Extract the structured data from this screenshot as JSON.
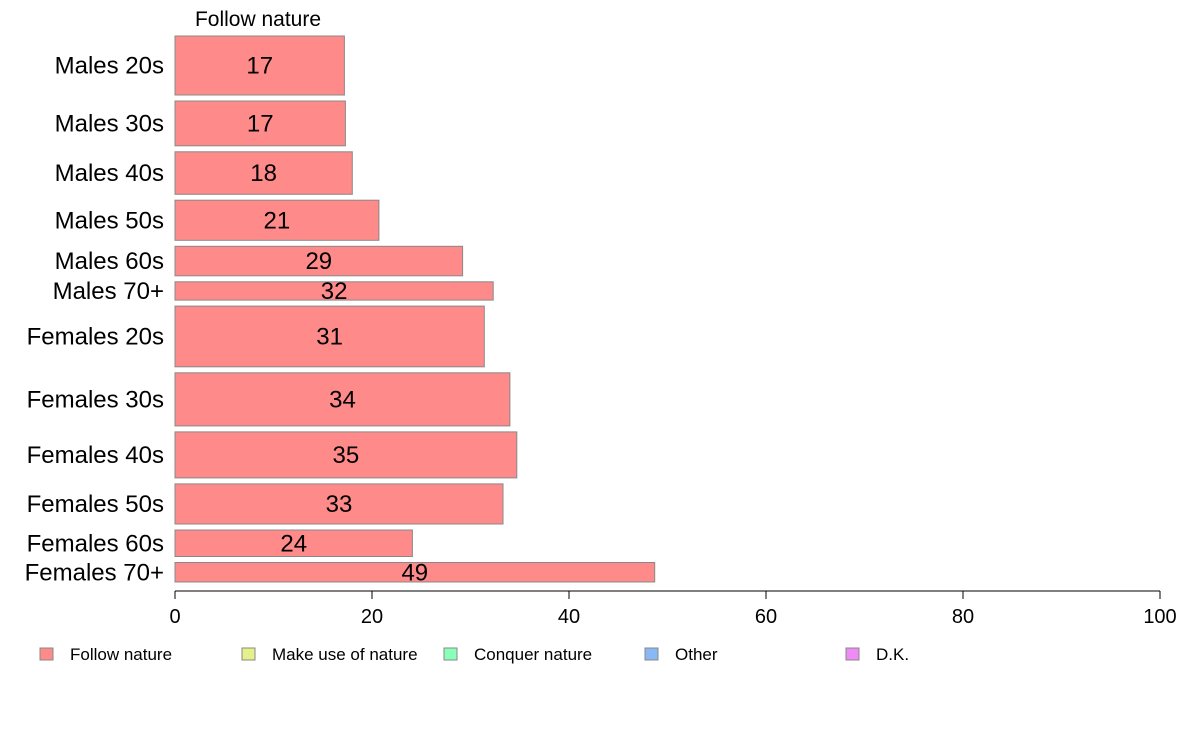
{
  "chart_data": {
    "type": "bar",
    "orientation": "horizontal",
    "title": "Follow nature",
    "categories": [
      "Males 20s",
      "Males 30s",
      "Males 40s",
      "Males 50s",
      "Males 60s",
      "Males 70+",
      "Females 20s",
      "Females 30s",
      "Females 40s",
      "Females 50s",
      "Females 60s",
      "Females 70+"
    ],
    "series": [
      {
        "name": "Follow nature",
        "values": [
          17.2,
          17.3,
          18.0,
          20.7,
          29.2,
          32.3,
          31.4,
          34.0,
          34.7,
          33.3,
          24.1,
          48.7
        ],
        "labels": [
          "17",
          "17",
          "18",
          "21",
          "29",
          "32",
          "31",
          "34",
          "35",
          "33",
          "24",
          "49"
        ]
      }
    ],
    "category_weights": [
      1.0,
      0.76,
      0.72,
      0.68,
      0.5,
      0.31,
      1.03,
      0.9,
      0.78,
      0.68,
      0.45,
      0.33
    ],
    "xlim": [
      0,
      100
    ],
    "xticks": [
      0,
      20,
      40,
      60,
      80,
      100
    ],
    "xlabel": "",
    "ylabel": "",
    "grid": false,
    "bar_color": "#ff8a8a",
    "bar_border": "#888888",
    "legend": {
      "placement": "bottom",
      "items": [
        {
          "label": "Follow nature",
          "color": "#ff8a8a"
        },
        {
          "label": "Make use of nature",
          "color": "#e6f08a"
        },
        {
          "label": "Conquer nature",
          "color": "#8affb8"
        },
        {
          "label": "Other",
          "color": "#8ab8f5"
        },
        {
          "label": "D.K.",
          "color": "#f08af5"
        }
      ]
    }
  }
}
